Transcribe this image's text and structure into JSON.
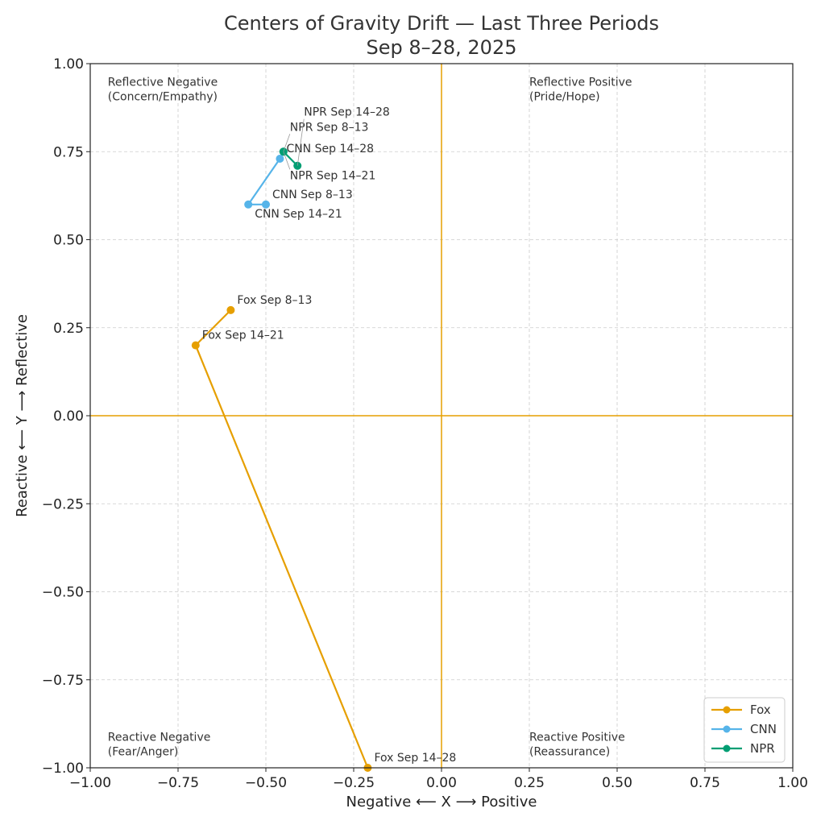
{
  "chart_data": {
    "type": "line",
    "title": "Centers of Gravity Drift — Last Three Periods",
    "subtitle": "Sep 8–28, 2025",
    "xlabel": "Negative  ⟵  X  ⟶  Positive",
    "ylabel": "Reactive  ⟵  Y  ⟶  Reflective",
    "xlim": [
      -1.0,
      1.0
    ],
    "ylim": [
      -1.0,
      1.0
    ],
    "xticks": [
      -1.0,
      -0.75,
      -0.5,
      -0.25,
      0.0,
      0.25,
      0.5,
      0.75,
      1.0
    ],
    "yticks": [
      -1.0,
      -0.75,
      -0.5,
      -0.25,
      0.0,
      0.25,
      0.5,
      0.75,
      1.0
    ],
    "xtick_labels": [
      "−1.00",
      "−0.75",
      "−0.50",
      "−0.25",
      "0.00",
      "0.25",
      "0.50",
      "0.75",
      "1.00"
    ],
    "ytick_labels": [
      "−1.00",
      "−0.75",
      "−0.50",
      "−0.25",
      "0.00",
      "0.25",
      "0.50",
      "0.75",
      "1.00"
    ],
    "grid": true,
    "zero_lines": true,
    "legend_position": "lower-right",
    "quadrant_labels": [
      {
        "line1": "Reflective Negative",
        "line2": "(Concern/Empathy)",
        "quadrant": "top-left"
      },
      {
        "line1": "Reflective Positive",
        "line2": "(Pride/Hope)",
        "quadrant": "top-right"
      },
      {
        "line1": "Reactive Negative",
        "line2": "(Fear/Anger)",
        "quadrant": "bottom-left"
      },
      {
        "line1": "Reactive Positive",
        "line2": "(Reassurance)",
        "quadrant": "bottom-right"
      }
    ],
    "series": [
      {
        "name": "Fox",
        "color": "#E69F00",
        "points": [
          {
            "x": -0.6,
            "y": 0.3,
            "label": "Fox Sep 8–13"
          },
          {
            "x": -0.7,
            "y": 0.2,
            "label": "Fox Sep 14–21"
          },
          {
            "x": -0.21,
            "y": -1.0,
            "label": "Fox Sep 14–28"
          }
        ]
      },
      {
        "name": "CNN",
        "color": "#56B4E9",
        "points": [
          {
            "x": -0.5,
            "y": 0.6,
            "label": "CNN Sep 8–13"
          },
          {
            "x": -0.55,
            "y": 0.6,
            "label": "CNN Sep 14–21"
          },
          {
            "x": -0.46,
            "y": 0.73,
            "label": "CNN Sep 14–28"
          }
        ]
      },
      {
        "name": "NPR",
        "color": "#009E73",
        "points": [
          {
            "x": -0.45,
            "y": 0.75,
            "label": "NPR Sep 8–13"
          },
          {
            "x": -0.45,
            "y": 0.75,
            "label": "NPR Sep 14–21"
          },
          {
            "x": -0.41,
            "y": 0.71,
            "label": "NPR Sep 14–28"
          }
        ]
      }
    ]
  }
}
